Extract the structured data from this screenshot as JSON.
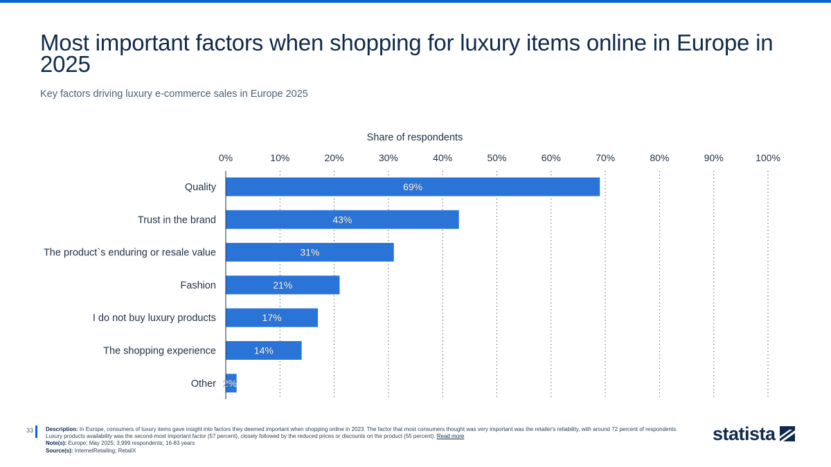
{
  "header": {
    "title": "Most important factors when shopping for luxury items online in Europe in 2025",
    "subtitle": "Key factors driving luxury e-commerce sales in Europe 2025"
  },
  "colors": {
    "accent": "#0666d2",
    "bar": "#2a74d8",
    "text": "#0f2a4a"
  },
  "chart_data": {
    "type": "bar",
    "orientation": "horizontal",
    "title": "Most important factors when shopping for luxury items online in Europe in 2025",
    "xlabel": "Share of respondents",
    "ylabel": "",
    "xlim": [
      0,
      100
    ],
    "ticks": [
      "0%",
      "10%",
      "20%",
      "30%",
      "40%",
      "50%",
      "60%",
      "70%",
      "80%",
      "90%",
      "100%"
    ],
    "grid": true,
    "categories": [
      "Quality",
      "Trust in the brand",
      "The product`s enduring or resale value",
      "Fashion",
      "I do not buy luxury products",
      "The shopping experience",
      "Other"
    ],
    "values": [
      69,
      43,
      31,
      21,
      17,
      14,
      2
    ],
    "data_labels": [
      "69%",
      "43%",
      "31%",
      "21%",
      "17%",
      "14%",
      "2%"
    ]
  },
  "footer": {
    "page_number": "33",
    "description_label": "Description:",
    "description_text": "In Europe, consumers of luxury items gave insight into factors they deemed important when shopping online in 2023. The factor that most consumers thought was very important was the retailer's reliability, with around 72 percent of respondents. Luxury products availability was the second-most important factor (57 percent), closely followed by the reduced prices or discounts on the product (55 percent).",
    "read_more": "Read more",
    "notes_label": "Note(s):",
    "notes_text": "Europe; May 2025; 3,999 respondents; 16-83 years",
    "source_label": "Source(s):",
    "source_text": "InternetRetailing; RetailX",
    "logo_text": "statista"
  }
}
